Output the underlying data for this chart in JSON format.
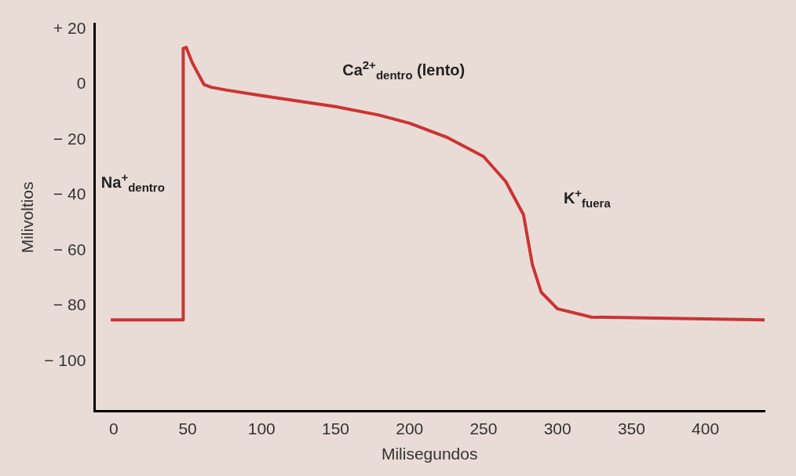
{
  "chart_data": {
    "type": "line",
    "xlabel": "Milisegundos",
    "ylabel": "Milivoltios",
    "x": [
      -2,
      47,
      47,
      49,
      53,
      58,
      61,
      66,
      76,
      100,
      150,
      179,
      200,
      225,
      250,
      265,
      277,
      283,
      289,
      300,
      323,
      440
    ],
    "series": [
      {
        "color": "#cc3333",
        "values": [
          -85,
          -85,
          13,
          13.4,
          8,
          3,
          0,
          -1,
          -2,
          -4,
          -8,
          -11,
          -14,
          -19,
          -26,
          -35,
          -47,
          -65,
          -75,
          -81,
          -84,
          -85
        ]
      }
    ],
    "xlim": [
      -13,
      440
    ],
    "xticks": [
      0,
      50,
      100,
      150,
      200,
      250,
      300,
      350,
      400
    ],
    "ylim": [
      -118,
      22
    ],
    "yticks": [
      {
        "value": 20,
        "label": "+ 20"
      },
      0,
      {
        "value": -20,
        "label": "− 20"
      },
      {
        "value": -40,
        "label": "− 40"
      },
      {
        "value": -60,
        "label": "− 60"
      },
      {
        "value": -80,
        "label": "− 80"
      },
      {
        "value": -100,
        "label": "− 100"
      }
    ],
    "grid": false,
    "legend": false,
    "marker": "none",
    "line_style": "solid",
    "annotations": [
      "Na$^{+}$$_{dentro}$",
      "Ca$^{2+}$$_{dentro}$ (lento)",
      "K$^{+}$$_{fuera}$"
    ]
  }
}
